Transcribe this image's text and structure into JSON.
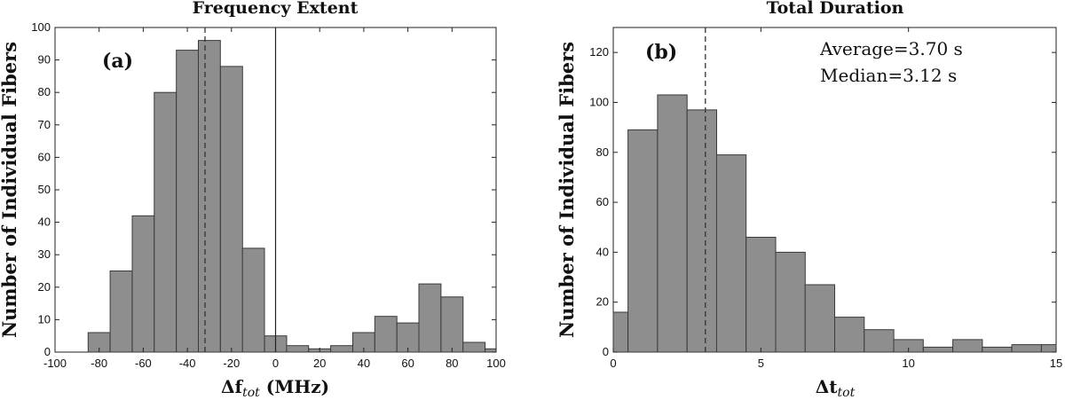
{
  "chart_data": [
    {
      "type": "bar",
      "panel": "(a)",
      "title": "Frequency Extent",
      "ylabel": "Number of Individual Fibers",
      "xlabel_main": "Δf",
      "xlabel_sub": "tot",
      "xlabel_unit": " (MHz)",
      "xlim": [
        -100,
        100
      ],
      "ylim": [
        0,
        100
      ],
      "xticks": [
        -100,
        -80,
        -60,
        -40,
        -20,
        0,
        20,
        40,
        60,
        80,
        100
      ],
      "yticks": [
        0,
        10,
        20,
        30,
        40,
        50,
        60,
        70,
        80,
        90,
        100
      ],
      "bin_width": 10,
      "bin_edges_start": [
        -85,
        -75,
        -65,
        -55,
        -45,
        -35,
        -25,
        -15,
        -5,
        5,
        15,
        25,
        35,
        45,
        55,
        65,
        75,
        85,
        95
      ],
      "values": [
        6,
        25,
        42,
        80,
        93,
        96,
        88,
        32,
        5,
        2,
        1,
        2,
        6,
        11,
        9,
        21,
        17,
        3,
        1
      ],
      "dashed_line_x": -32,
      "solid_line_x": 0
    },
    {
      "type": "bar",
      "panel": "(b)",
      "title": "Total Duration",
      "ylabel": "Number of Individual Fibers",
      "xlabel_main": "Δt",
      "xlabel_sub": "tot",
      "xlabel_unit": "",
      "xlim": [
        0,
        15
      ],
      "ylim": [
        0,
        130
      ],
      "xticks": [
        0,
        5,
        10,
        15
      ],
      "yticks": [
        0,
        20,
        40,
        60,
        80,
        100,
        120
      ],
      "bin_width": 1,
      "bin_edges_start": [
        -0.5,
        0.5,
        1.5,
        2.5,
        3.5,
        4.5,
        5.5,
        6.5,
        7.5,
        8.5,
        9.5,
        10.5,
        11.5,
        12.5,
        13.5,
        14.5
      ],
      "values": [
        16,
        89,
        103,
        97,
        79,
        46,
        40,
        27,
        14,
        9,
        5,
        2,
        5,
        2,
        3,
        3
      ],
      "dashed_line_x": 3.12,
      "annotations": [
        "Average=3.70 s",
        "Median=3.12 s"
      ]
    }
  ]
}
